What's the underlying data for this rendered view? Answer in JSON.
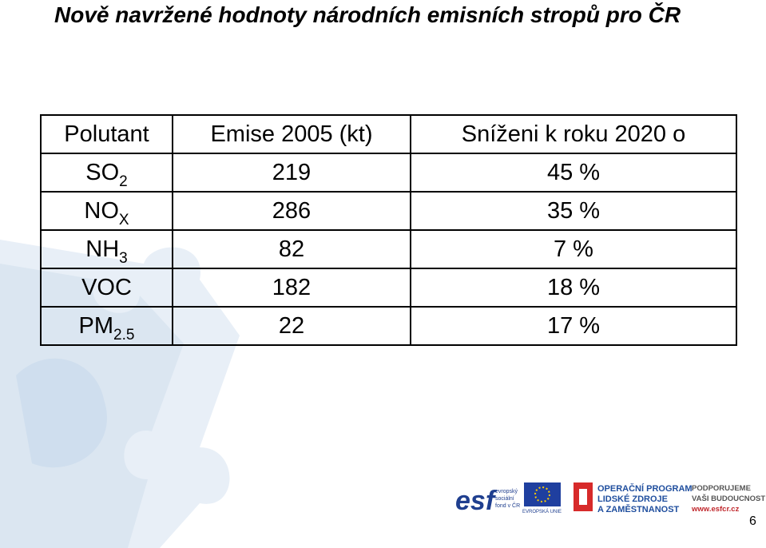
{
  "title": "Nově navržené hodnoty národních emisních stropů pro ČR",
  "table": {
    "header": [
      "Polutant",
      "Emise 2005 (kt)",
      "Sníženi k roku 2020 o"
    ],
    "rows": [
      [
        {
          "base": "SO",
          "sub": "2"
        },
        "219",
        "45 %"
      ],
      [
        {
          "base": "NO",
          "sub": "X"
        },
        "286",
        "35 %"
      ],
      [
        {
          "base": "NH",
          "sub": "3"
        },
        "82",
        "7 %"
      ],
      [
        {
          "base": "VOC"
        },
        "182",
        "18 %"
      ],
      [
        {
          "base": "PM",
          "sub": "2.5"
        },
        "22",
        "17 %"
      ]
    ]
  },
  "footer": {
    "esf": "esf",
    "esf_text": [
      "evropský",
      "sociální",
      "fond v ČR"
    ],
    "eu": "EVROPSKÁ UNIE",
    "op": [
      "OPERAČNÍ PROGRAM",
      "LIDSKÉ ZDROJE",
      "A ZAMĚSTNANOST"
    ],
    "slogan": [
      "PODPORUJEME",
      "VAŠI BUDOUCNOST",
      "www.esfcr.cz"
    ],
    "page": "6"
  }
}
